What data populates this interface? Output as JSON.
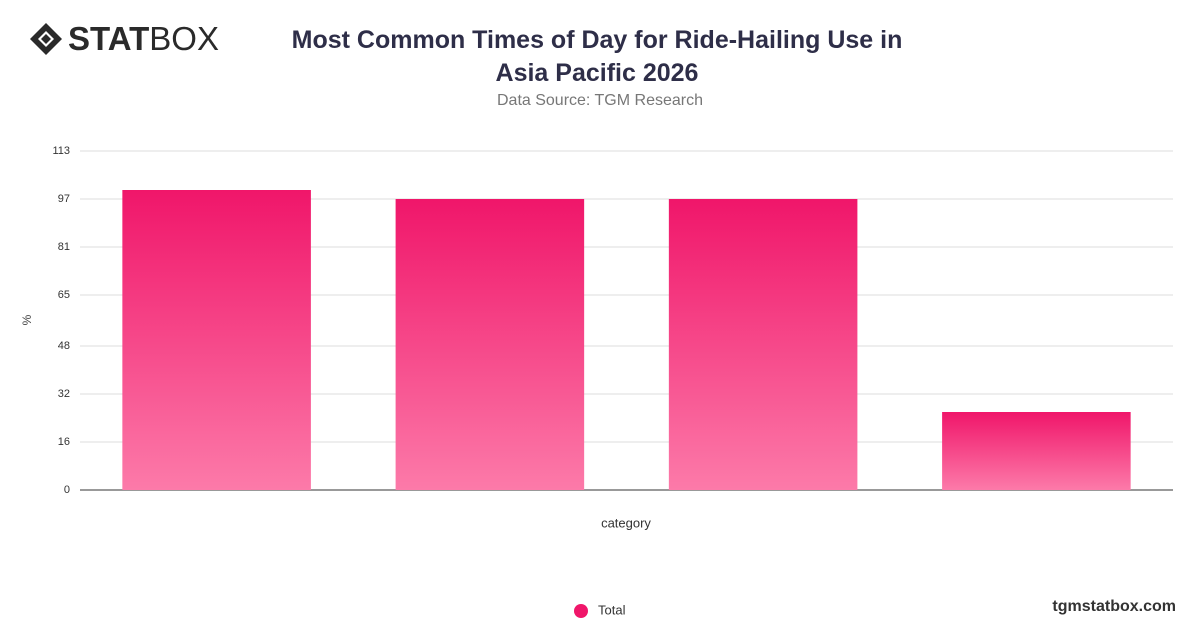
{
  "brand": {
    "bold": "STAT",
    "light": "BOX"
  },
  "footer": "tgmstatbox.com",
  "chart_data": {
    "type": "bar",
    "title": "Most Common Times of Day for Ride-Hailing Use in Asia Pacific 2026",
    "subtitle": "Data Source: TGM Research",
    "x_label": "category",
    "y_label": "%",
    "categories": [
      null,
      null,
      null,
      null
    ],
    "series": [
      {
        "name": "Total",
        "color": "#f0166a",
        "gradient_end": "#fc7aa9",
        "values": [
          100,
          97,
          97,
          26
        ]
      }
    ],
    "ylim": [
      0,
      113
    ],
    "yticks": [
      0,
      16,
      32,
      48,
      65,
      81,
      97,
      113
    ],
    "grid": true,
    "legend": "bottom"
  }
}
